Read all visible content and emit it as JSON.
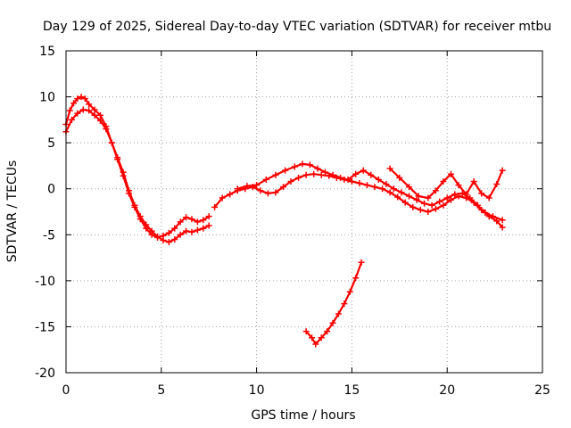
{
  "chart_data": {
    "type": "scatter",
    "title": "Day 129 of 2025, Sidereal Day-to-day VTEC variation (SDTVAR) for receiver mtbu",
    "xlabel": "GPS time / hours",
    "ylabel": "SDTVAR / TECUs",
    "xlim": [
      0,
      25
    ],
    "ylim": [
      -20,
      15
    ],
    "x_ticks": [
      "0",
      "5",
      "10",
      "15",
      "20",
      "25"
    ],
    "y_ticks": [
      "15",
      "10",
      "5",
      "0",
      "-5",
      "-10",
      "-15",
      "-20"
    ],
    "grid": true,
    "legend": "none",
    "series": [
      {
        "color": "#ff0000",
        "x": [
          0.0,
          0.2,
          0.4,
          0.6,
          0.8,
          1.0,
          1.2,
          1.5,
          1.8,
          2.1,
          2.4,
          2.7,
          3.0,
          3.3,
          3.6,
          3.9,
          4.2,
          4.5,
          4.8,
          5.1,
          5.4,
          5.7,
          6.0,
          6.3,
          6.6,
          6.9,
          7.2,
          7.5
        ],
        "y": [
          7.0,
          8.5,
          9.3,
          9.8,
          10.0,
          9.8,
          9.2,
          8.6,
          8.0,
          6.8,
          5.0,
          3.2,
          1.4,
          -0.5,
          -2.0,
          -3.3,
          -4.3,
          -5.0,
          -5.3,
          -5.1,
          -4.8,
          -4.3,
          -3.6,
          -3.1,
          -3.3,
          -3.6,
          -3.4,
          -3.0
        ]
      },
      {
        "color": "#ff0000",
        "x": [
          0.0,
          0.3,
          0.6,
          0.9,
          1.2,
          1.5,
          1.8,
          2.1,
          2.4,
          2.7,
          3.0,
          3.3,
          3.6,
          3.9,
          4.2,
          4.5,
          4.8,
          5.1,
          5.4,
          5.7,
          6.0,
          6.3,
          6.6,
          6.9,
          7.2,
          7.5
        ],
        "y": [
          6.2,
          7.5,
          8.2,
          8.6,
          8.5,
          8.0,
          7.4,
          6.5,
          5.0,
          3.4,
          1.8,
          -0.2,
          -1.8,
          -3.0,
          -3.9,
          -4.6,
          -5.2,
          -5.6,
          -5.8,
          -5.5,
          -5.0,
          -4.6,
          -4.7,
          -4.5,
          -4.3,
          -4.0
        ]
      },
      {
        "color": "#ff0000",
        "x": [
          7.8,
          8.2,
          8.6,
          9.0,
          9.4,
          9.8,
          10.2,
          10.6,
          11.0,
          11.4,
          11.8,
          12.2,
          12.6,
          13.0,
          13.4,
          13.8,
          14.2,
          14.6,
          15.0,
          15.4,
          15.8,
          16.2,
          16.6,
          17.0,
          17.4,
          17.8,
          18.2,
          18.6,
          19.0,
          19.4,
          19.8,
          20.2,
          20.6,
          21.0,
          21.4,
          21.8,
          22.2,
          22.6,
          22.9
        ],
        "y": [
          -2.0,
          -1.0,
          -0.6,
          -0.2,
          0.0,
          0.2,
          -0.2,
          -0.5,
          -0.4,
          0.2,
          0.8,
          1.2,
          1.5,
          1.6,
          1.5,
          1.4,
          1.2,
          1.0,
          0.8,
          0.6,
          0.4,
          0.2,
          0.0,
          -0.4,
          -0.9,
          -1.5,
          -2.0,
          -2.3,
          -2.5,
          -2.2,
          -1.8,
          -1.2,
          -0.8,
          -1.0,
          -1.5,
          -2.3,
          -3.0,
          -3.5,
          -4.2
        ]
      },
      {
        "color": "#ff0000",
        "x": [
          9.0,
          9.5,
          10.0,
          10.5,
          11.0,
          11.5,
          12.0,
          12.4,
          12.8,
          13.2,
          13.6,
          14.0,
          14.4,
          14.8,
          15.2,
          15.6,
          16.0,
          16.4,
          16.8,
          17.2,
          17.6,
          18.0,
          18.4,
          18.8,
          19.2,
          19.6,
          20.0,
          20.4,
          20.8,
          21.2,
          21.6,
          22.0,
          22.4,
          22.9
        ],
        "y": [
          0.0,
          0.3,
          0.4,
          1.0,
          1.5,
          2.0,
          2.4,
          2.7,
          2.6,
          2.2,
          1.8,
          1.5,
          1.2,
          1.0,
          1.6,
          2.0,
          1.5,
          1.0,
          0.5,
          0.0,
          -0.4,
          -0.8,
          -1.2,
          -1.6,
          -1.8,
          -1.4,
          -1.0,
          -0.6,
          -0.5,
          -1.0,
          -1.8,
          -2.6,
          -3.0,
          -3.4
        ]
      },
      {
        "color": "#ff0000",
        "x": [
          12.6,
          12.9,
          13.1,
          13.4,
          13.7,
          14.0,
          14.3,
          14.6,
          14.9,
          15.2,
          15.5
        ],
        "y": [
          -15.5,
          -16.2,
          -16.9,
          -16.2,
          -15.5,
          -14.6,
          -13.6,
          -12.5,
          -11.2,
          -9.7,
          -8.0
        ]
      },
      {
        "color": "#ff0000",
        "x": [
          17.0,
          17.5,
          18.0,
          18.5,
          19.0,
          19.4,
          19.8,
          20.2,
          20.6,
          21.0,
          21.4,
          21.8,
          22.2,
          22.6,
          22.9
        ],
        "y": [
          2.2,
          1.2,
          0.2,
          -0.8,
          -1.0,
          -0.2,
          0.8,
          1.6,
          0.4,
          -0.6,
          0.8,
          -0.5,
          -1.0,
          0.5,
          2.0
        ]
      }
    ]
  }
}
